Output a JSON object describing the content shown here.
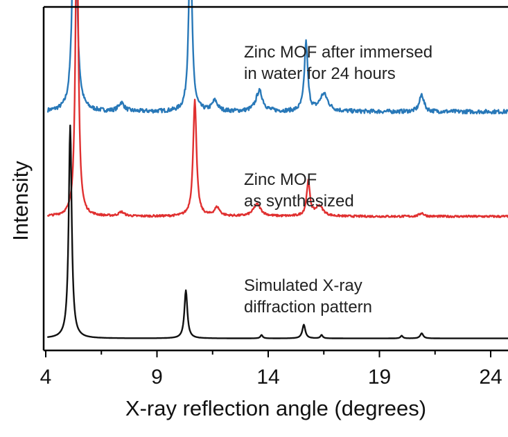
{
  "chart_data": {
    "type": "line",
    "xlabel": "X-ray reflection angle (degrees)",
    "ylabel": "Intensity",
    "xlim": [
      4,
      25
    ],
    "xticks": [
      4,
      9,
      14,
      19,
      24
    ],
    "colors": {
      "water": "#2878b8",
      "synth": "#e03030",
      "sim": "#111111"
    },
    "series": [
      {
        "key": "water",
        "baseline": 0.695,
        "noise": 0.006,
        "peaks": [
          {
            "x": 5.3,
            "h": 0.94,
            "w": 0.09
          },
          {
            "x": 7.4,
            "h": 0.025,
            "w": 0.15
          },
          {
            "x": 10.5,
            "h": 0.5,
            "w": 0.09
          },
          {
            "x": 11.6,
            "h": 0.03,
            "w": 0.15
          },
          {
            "x": 13.6,
            "h": 0.06,
            "w": 0.18
          },
          {
            "x": 15.7,
            "h": 0.2,
            "w": 0.09
          },
          {
            "x": 16.5,
            "h": 0.05,
            "w": 0.22
          },
          {
            "x": 20.9,
            "h": 0.05,
            "w": 0.12
          }
        ]
      },
      {
        "key": "synth",
        "baseline": 0.39,
        "noise": 0.003,
        "peaks": [
          {
            "x": 5.4,
            "h": 0.87,
            "w": 0.08
          },
          {
            "x": 7.4,
            "h": 0.012,
            "w": 0.15
          },
          {
            "x": 10.7,
            "h": 0.34,
            "w": 0.09
          },
          {
            "x": 11.7,
            "h": 0.025,
            "w": 0.15
          },
          {
            "x": 13.5,
            "h": 0.035,
            "w": 0.2
          },
          {
            "x": 15.8,
            "h": 0.1,
            "w": 0.09
          },
          {
            "x": 16.3,
            "h": 0.03,
            "w": 0.2
          },
          {
            "x": 20.9,
            "h": 0.01,
            "w": 0.12
          }
        ]
      },
      {
        "key": "sim",
        "baseline": 0.035,
        "noise": 0.0,
        "peaks": [
          {
            "x": 5.1,
            "h": 0.62,
            "w": 0.08
          },
          {
            "x": 10.3,
            "h": 0.14,
            "w": 0.08
          },
          {
            "x": 13.7,
            "h": 0.01,
            "w": 0.06
          },
          {
            "x": 15.6,
            "h": 0.04,
            "w": 0.08
          },
          {
            "x": 16.4,
            "h": 0.01,
            "w": 0.06
          },
          {
            "x": 20.0,
            "h": 0.008,
            "w": 0.06
          },
          {
            "x": 20.9,
            "h": 0.015,
            "w": 0.08
          }
        ]
      }
    ],
    "annotations": {
      "water": [
        "Zinc MOF after immersed",
        "in water for 24 hours"
      ],
      "synth": [
        "Zinc MOF",
        "as synthesized"
      ],
      "sim": [
        "Simulated X-ray",
        "diffraction pattern"
      ]
    }
  }
}
